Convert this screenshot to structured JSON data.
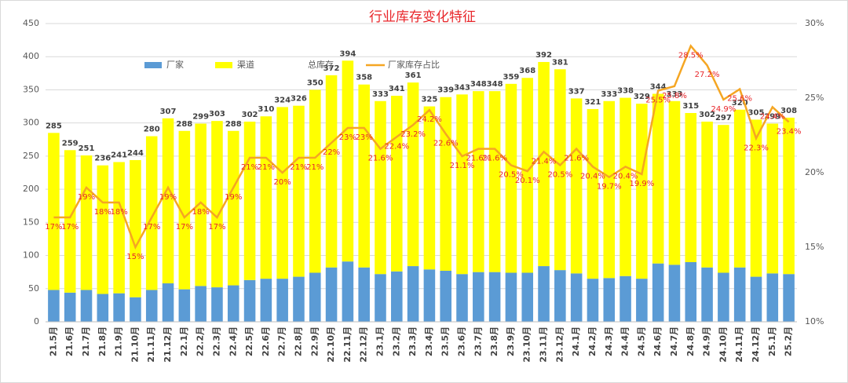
{
  "chart_data": {
    "type": "bar",
    "title": "行业库存变化特征",
    "categories": [
      "21.5月",
      "21.6月",
      "21.7月",
      "21.8月",
      "21.9月",
      "21.10月",
      "21.11月",
      "21.12月",
      "22.1月",
      "22.2月",
      "22.3月",
      "22.4月",
      "22.5月",
      "22.6月",
      "22.7月",
      "22.8月",
      "22.9月",
      "22.10月",
      "22.11月",
      "22.12月",
      "23.1月",
      "23.2月",
      "23.3月",
      "23.4月",
      "23.5月",
      "23.6月",
      "23.7月",
      "23.8月",
      "23.9月",
      "23.10月",
      "23.11月",
      "23.12月",
      "24.1月",
      "24.2月",
      "24.3月",
      "24.4月",
      "24.5月",
      "24.6月",
      "24.7月",
      "24.8月",
      "24.9月",
      "24.10月",
      "24.11月",
      "24.12月",
      "25.1月",
      "25.2月"
    ],
    "series": [
      {
        "name": "厂家",
        "color": "#5b9bd5",
        "values": [
          48,
          44,
          48,
          42,
          43,
          37,
          48,
          58,
          49,
          54,
          52,
          55,
          63,
          65,
          65,
          68,
          74,
          82,
          91,
          82,
          72,
          76,
          84,
          79,
          77,
          72,
          75,
          75,
          74,
          74,
          84,
          78,
          73,
          65,
          66,
          69,
          65,
          88,
          86,
          90,
          82,
          74,
          82,
          68,
          73,
          72
        ]
      },
      {
        "name": "渠道",
        "color": "#ffff00",
        "values": [
          237,
          215,
          203,
          194,
          198,
          207,
          232,
          249,
          239,
          245,
          251,
          233,
          239,
          245,
          259,
          258,
          276,
          290,
          303,
          276,
          261,
          265,
          277,
          246,
          262,
          271,
          273,
          273,
          285,
          294,
          308,
          303,
          264,
          256,
          267,
          269,
          264,
          256,
          247,
          225,
          220,
          223,
          238,
          237,
          226,
          236
        ]
      },
      {
        "name": "总库存",
        "values": [
          285,
          259,
          251,
          236,
          241,
          244,
          280,
          307,
          288,
          299,
          303,
          288,
          302,
          310,
          324,
          326,
          350,
          372,
          394,
          358,
          333,
          341,
          361,
          325,
          339,
          343,
          348,
          348,
          359,
          368,
          392,
          381,
          337,
          321,
          333,
          338,
          329,
          344,
          333,
          315,
          302,
          297,
          320,
          305,
          299,
          308
        ]
      },
      {
        "name": "厂家库存占比",
        "color": "#f5a623",
        "axis": "y2",
        "values": [
          17,
          17,
          19,
          18,
          18,
          15,
          17,
          19,
          17,
          18,
          17,
          19,
          21,
          21,
          20,
          21,
          21,
          22,
          23,
          23,
          21.6,
          22.4,
          23.2,
          24.2,
          22.6,
          21.1,
          21.6,
          21.6,
          20.5,
          20.1,
          21.4,
          20.5,
          21.6,
          20.4,
          19.7,
          20.4,
          19.9,
          25.5,
          25.8,
          28.5,
          27.2,
          24.9,
          25.6,
          22.3,
          24.4,
          23.4
        ],
        "value_labels": [
          "17%",
          "17%",
          "19%",
          "18%",
          "18%",
          "15%",
          "17%",
          "19%",
          "17%",
          "18%",
          "17%",
          "19%",
          "21%",
          "21%",
          "20%",
          "21%",
          "21%",
          "22%",
          "23%",
          "23%",
          "21.6%",
          "22.4%",
          "23.2%",
          "24.2%",
          "22.6%",
          "21.1%",
          "21.6%",
          "21.6%",
          "20.5%",
          "20.1%",
          "21.4%",
          "20.5%",
          "21.6%",
          "20.4%",
          "19.7%",
          "20.4%",
          "19.9%",
          "25.5%",
          "25.8%",
          "28.5%",
          "27.2%",
          "24.9%",
          "25.6%",
          "22.3%",
          "24.4%",
          "23.4%"
        ]
      }
    ],
    "ylim": [
      0,
      450
    ],
    "yticks": [
      0,
      50,
      100,
      150,
      200,
      250,
      300,
      350,
      400,
      450
    ],
    "y2lim": [
      10,
      30
    ],
    "y2ticks": [
      {
        "value": 10,
        "label": "10%"
      },
      {
        "value": 15,
        "label": "15%"
      },
      {
        "value": 20,
        "label": "20%"
      },
      {
        "value": 25,
        "label": "25%"
      },
      {
        "value": 30,
        "label": "30%"
      }
    ],
    "grid": true
  }
}
